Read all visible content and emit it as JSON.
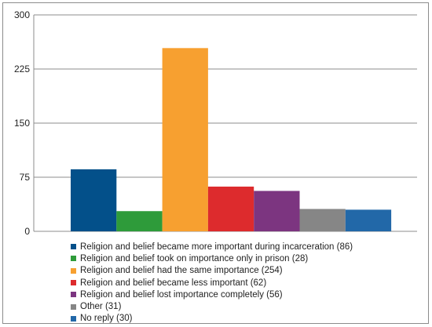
{
  "chart_data": {
    "type": "bar",
    "title": "",
    "xlabel": "",
    "ylabel": "",
    "ylim": [
      0,
      300
    ],
    "yticks": [
      0,
      75,
      150,
      225,
      300
    ],
    "grid": true,
    "legend_position": "bottom",
    "series": [
      {
        "name": "Religion and belief became more important during incarceration (86)",
        "value": 86,
        "color": "#03508a"
      },
      {
        "name": "Religion and belief took on importance only in prison (28)",
        "value": 28,
        "color": "#2e9b3a"
      },
      {
        "name": "Religion and belief had the same importance  (254)",
        "value": 254,
        "color": "#f7a030"
      },
      {
        "name": "Religion and belief became less important (62)",
        "value": 62,
        "color": "#dd2b2d"
      },
      {
        "name": "Religion and belief lost importance completely (56)",
        "value": 56,
        "color": "#7c3580"
      },
      {
        "name": "Other (31)",
        "value": 31,
        "color": "#868686"
      },
      {
        "name": "No reply (30)",
        "value": 30,
        "color": "#2268a8"
      }
    ]
  }
}
